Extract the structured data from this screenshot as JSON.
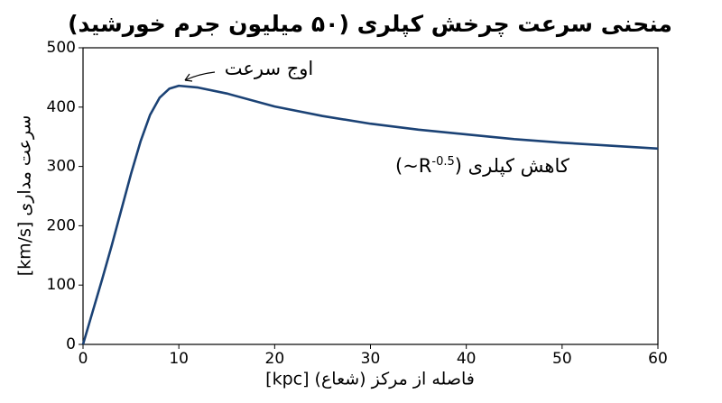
{
  "chart_data": {
    "type": "line",
    "title": "منحنی سرعت چرخش کپلری (۵۰ میلیون جرم خورشید)",
    "x_label": "فاصله از مرکز (شعاع) [kpc]",
    "y_label": "سرعت مداری [km/s]",
    "x": [
      0,
      1,
      2,
      3,
      4,
      5,
      6,
      7,
      8,
      9,
      10,
      12,
      15,
      20,
      25,
      30,
      35,
      40,
      45,
      50,
      55,
      60
    ],
    "series": [
      {
        "color": "#1b4275",
        "values": [
          0,
          55,
          110,
          167,
          227,
          287,
          342,
          387,
          416,
          431,
          436,
          433,
          423,
          401,
          385,
          372,
          362,
          354,
          346,
          340,
          335,
          330
        ]
      }
    ],
    "xlim": [
      0,
      60
    ],
    "xticks": [
      0,
      10,
      20,
      30,
      40,
      50,
      60
    ],
    "ylim": [
      0,
      500
    ],
    "yticks": [
      0,
      100,
      200,
      300,
      400,
      500
    ],
    "grid": false,
    "annotations": {
      "peak": "اوج سرعت",
      "decline_text": "کاهش کپلری",
      "decline_formula": "(~R",
      "decline_exponent": "-0.5",
      "decline_close": ")"
    }
  }
}
